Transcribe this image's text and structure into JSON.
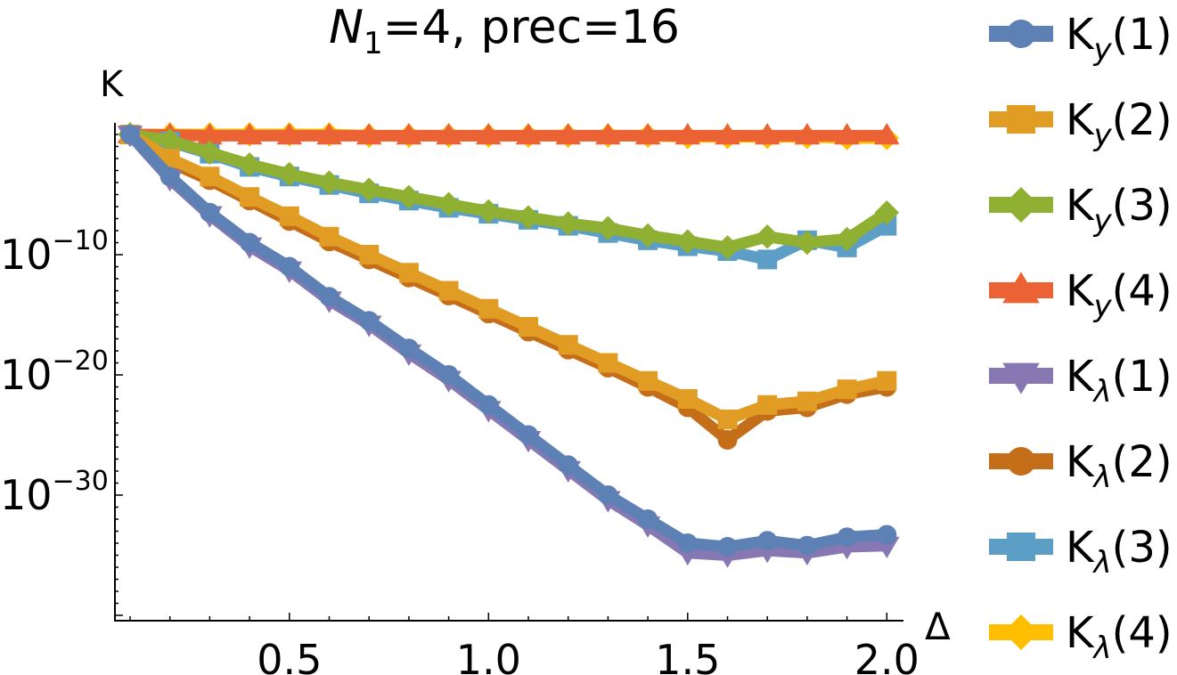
{
  "chart_data": {
    "type": "line",
    "title": {
      "n_label": "N",
      "n_sub": "1",
      "rest": "=4, prec=16"
    },
    "xlabel": "Δ",
    "ylabel": "K",
    "xlim": [
      0.05,
      2.03
    ],
    "ylim_log10": [
      -40,
      0.5
    ],
    "yscale": "log",
    "x_ticks": [
      0.5,
      1.0,
      1.5,
      2.0
    ],
    "x_tick_labels": [
      "0.5",
      "1.0",
      "1.5",
      "2.0"
    ],
    "y_ticks_log10": [
      -10,
      -20,
      -30
    ],
    "y_tick_labels": [
      {
        "base": "10",
        "exp": "−10"
      },
      {
        "base": "10",
        "exp": "−20"
      },
      {
        "base": "10",
        "exp": "−30"
      }
    ],
    "x": [
      0.1,
      0.2,
      0.3,
      0.4,
      0.5,
      0.6,
      0.7,
      0.8,
      0.9,
      1.0,
      1.1,
      1.2,
      1.3,
      1.4,
      1.5,
      1.6,
      1.7,
      1.8,
      1.9,
      2.0
    ],
    "legend_position": "right",
    "series": [
      {
        "name": "K_y(1)",
        "label_main": "K",
        "label_sub": "y",
        "label_idx": "(1)",
        "color": "#5e81b5",
        "marker": "circle",
        "log10_values": [
          0.0,
          -3.5,
          -6.5,
          -9.0,
          -11.0,
          -13.5,
          -15.5,
          -17.8,
          -20.0,
          -22.5,
          -25.0,
          -27.5,
          -30.0,
          -32.0,
          -34.0,
          -34.3,
          -33.8,
          -34.2,
          -33.5,
          -33.3
        ]
      },
      {
        "name": "K_y(2)",
        "label_main": "K",
        "label_sub": "y",
        "label_idx": "(2)",
        "color": "#e19c24",
        "marker": "square",
        "log10_values": [
          0.0,
          -2.0,
          -3.5,
          -5.2,
          -6.8,
          -8.5,
          -10.0,
          -11.5,
          -13.0,
          -14.5,
          -16.0,
          -17.5,
          -19.0,
          -20.5,
          -22.0,
          -23.7,
          -22.5,
          -22.2,
          -21.2,
          -20.5
        ]
      },
      {
        "name": "K_y(3)",
        "label_main": "K",
        "label_sub": "y",
        "label_idx": "(3)",
        "color": "#8fb032",
        "marker": "diamond",
        "log10_values": [
          0.0,
          -0.5,
          -1.5,
          -2.5,
          -3.3,
          -4.0,
          -4.6,
          -5.2,
          -5.8,
          -6.4,
          -6.9,
          -7.4,
          -7.8,
          -8.4,
          -8.9,
          -9.4,
          -8.5,
          -9.0,
          -8.7,
          -6.5
        ]
      },
      {
        "name": "K_y(4)",
        "label_main": "K",
        "label_sub": "y",
        "label_idx": "(4)",
        "color": "#eb6235",
        "marker": "triangle-up",
        "log10_values": [
          0.0,
          -0.05,
          -0.1,
          -0.1,
          -0.1,
          -0.1,
          -0.1,
          -0.1,
          -0.1,
          -0.1,
          -0.1,
          -0.1,
          -0.1,
          -0.1,
          -0.1,
          -0.1,
          -0.1,
          -0.1,
          -0.1,
          -0.1
        ]
      },
      {
        "name": "K_λ(1)",
        "label_main": "K",
        "label_sub": "λ",
        "label_idx": "(1)",
        "color": "#8778b3",
        "marker": "triangle-down",
        "log10_values": [
          0.0,
          -3.7,
          -6.7,
          -9.3,
          -11.3,
          -13.8,
          -15.8,
          -18.2,
          -20.4,
          -22.9,
          -25.4,
          -27.9,
          -30.4,
          -32.5,
          -34.8,
          -35.0,
          -34.6,
          -34.8,
          -34.3,
          -34.2
        ]
      },
      {
        "name": "K_λ(2)",
        "label_main": "K",
        "label_sub": "λ",
        "label_idx": "(2)",
        "color": "#c56e1a",
        "marker": "circle",
        "log10_values": [
          0.0,
          -2.3,
          -3.8,
          -5.5,
          -7.2,
          -8.9,
          -10.4,
          -11.9,
          -13.4,
          -14.9,
          -16.4,
          -17.9,
          -19.4,
          -21.0,
          -22.7,
          -25.4,
          -23.0,
          -22.7,
          -21.6,
          -21.0
        ]
      },
      {
        "name": "K_λ(3)",
        "label_main": "K",
        "label_sub": "λ",
        "label_idx": "(3)",
        "color": "#5d9ec7",
        "marker": "square",
        "log10_values": [
          0.0,
          -0.6,
          -1.6,
          -2.7,
          -3.5,
          -4.2,
          -4.9,
          -5.5,
          -6.1,
          -6.6,
          -7.1,
          -7.6,
          -8.2,
          -8.8,
          -9.3,
          -9.7,
          -10.4,
          -8.8,
          -9.4,
          -7.6
        ]
      },
      {
        "name": "K_λ(4)",
        "label_main": "K",
        "label_sub": "λ",
        "label_idx": "(4)",
        "color": "#ffbf00",
        "marker": "diamond",
        "log10_values": [
          0.0,
          0.0,
          0.0,
          0.0,
          0.0,
          0.0,
          -0.1,
          -0.1,
          -0.1,
          -0.1,
          -0.1,
          -0.1,
          -0.1,
          -0.1,
          -0.2,
          -0.2,
          -0.2,
          -0.2,
          -0.3,
          -0.3
        ]
      }
    ]
  }
}
